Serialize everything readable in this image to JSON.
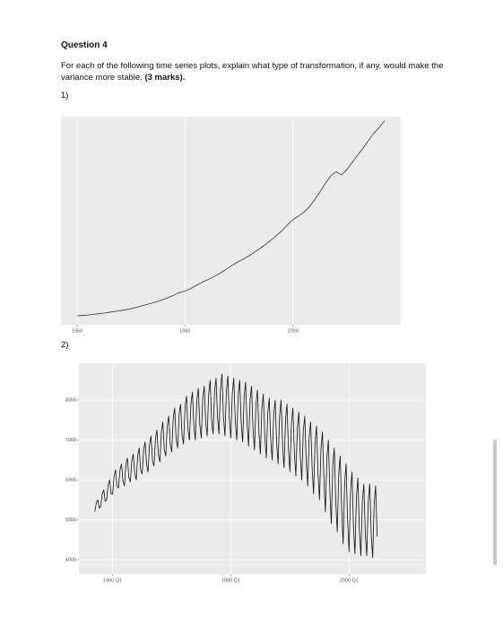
{
  "question": {
    "title": "Question 4",
    "text": "For each of the following time series plots, explain what type of transformation, if any, would make the variance more stable.",
    "marks": "(3 marks).",
    "label1": "1)",
    "label2": "2)"
  },
  "chart_data": [
    {
      "type": "line",
      "color": "#333333",
      "x": [
        1960,
        1961,
        1962,
        1963,
        1964,
        1965,
        1966,
        1967,
        1968,
        1969,
        1970,
        1971,
        1972,
        1973,
        1974,
        1975,
        1976,
        1977,
        1978,
        1979,
        1980,
        1981,
        1982,
        1983,
        1984,
        1985,
        1986,
        1987,
        1988,
        1989,
        1990,
        1991,
        1992,
        1993,
        1994,
        1995,
        1996,
        1997,
        1998,
        1999,
        2000,
        2001,
        2002,
        2003,
        2004,
        2005,
        2006,
        2007,
        2008,
        2009,
        2010,
        2011,
        2012,
        2013,
        2014,
        2015,
        2016,
        2017
      ],
      "values": [
        4.3,
        4.5,
        4.7,
        5.0,
        5.3,
        5.6,
        6.0,
        6.4,
        6.8,
        7.2,
        7.7,
        8.4,
        9.1,
        9.8,
        10.5,
        11.3,
        12.2,
        13.2,
        14.3,
        15.5,
        16.2,
        17.3,
        18.8,
        20.2,
        21.4,
        22.6,
        24.0,
        25.6,
        27.3,
        29.0,
        30.5,
        31.8,
        33.4,
        35.1,
        36.8,
        38.7,
        40.8,
        43.0,
        45.3,
        48.0,
        50.6,
        52.2,
        54.0,
        56.5,
        60.0,
        63.8,
        67.8,
        71.5,
        73.5,
        72.0,
        74.5,
        78.0,
        81.5,
        84.8,
        88.5,
        92.0,
        94.8,
        98.0
      ],
      "xlim": [
        1957,
        2020
      ],
      "ylim": [
        0,
        100
      ],
      "xticks": [
        1960,
        1980,
        2000
      ],
      "grid": true
    },
    {
      "type": "line",
      "color": "#111111",
      "x": [
        1957,
        1957.25,
        1957.5,
        1957.75,
        1958,
        1958.25,
        1958.5,
        1958.75,
        1959,
        1959.25,
        1959.5,
        1959.75,
        1960,
        1960.25,
        1960.5,
        1960.75,
        1961,
        1961.25,
        1961.5,
        1961.75,
        1962,
        1962.25,
        1962.5,
        1962.75,
        1963,
        1963.25,
        1963.5,
        1963.75,
        1964,
        1964.25,
        1964.5,
        1964.75,
        1965,
        1965.25,
        1965.5,
        1965.75,
        1966,
        1966.25,
        1966.5,
        1966.75,
        1967,
        1967.25,
        1967.5,
        1967.75,
        1968,
        1968.25,
        1968.5,
        1968.75,
        1969,
        1969.25,
        1969.5,
        1969.75,
        1970,
        1970.25,
        1970.5,
        1970.75,
        1971,
        1971.25,
        1971.5,
        1971.75,
        1972,
        1972.25,
        1972.5,
        1972.75,
        1973,
        1973.25,
        1973.5,
        1973.75,
        1974,
        1974.25,
        1974.5,
        1974.75,
        1975,
        1975.25,
        1975.5,
        1975.75,
        1976,
        1976.25,
        1976.5,
        1976.75,
        1977,
        1977.25,
        1977.5,
        1977.75,
        1978,
        1978.25,
        1978.5,
        1978.75,
        1979,
        1979.25,
        1979.5,
        1979.75,
        1980,
        1980.25,
        1980.5,
        1980.75,
        1981,
        1981.25,
        1981.5,
        1981.75,
        1982,
        1982.25,
        1982.5,
        1982.75,
        1983,
        1983.25,
        1983.5,
        1983.75,
        1984,
        1984.25,
        1984.5,
        1984.75,
        1985,
        1985.25,
        1985.5,
        1985.75,
        1986,
        1986.25,
        1986.5,
        1986.75,
        1987,
        1987.25,
        1987.5,
        1987.75,
        1988,
        1988.25,
        1988.5,
        1988.75,
        1989,
        1989.25,
        1989.5,
        1989.75,
        1990,
        1990.25,
        1990.5,
        1990.75,
        1991,
        1991.25,
        1991.5,
        1991.75,
        1992,
        1992.25,
        1992.5,
        1992.75,
        1993,
        1993.25,
        1993.5,
        1993.75,
        1994,
        1994.25,
        1994.5,
        1994.75,
        1995,
        1995.25,
        1995.5,
        1995.75,
        1996,
        1996.25,
        1996.5,
        1996.75,
        1997,
        1997.25,
        1997.5,
        1997.75,
        1998,
        1998.25,
        1998.5,
        1998.75,
        1999,
        1999.25,
        1999.5,
        1999.75,
        2000,
        2000.25,
        2000.5,
        2000.75,
        2001,
        2001.25,
        2001.5,
        2001.75,
        2002,
        2002.25,
        2002.5,
        2002.75,
        2003,
        2003.25,
        2003.5,
        2003.75,
        2004,
        2004.25,
        2004.5,
        2004.75
      ],
      "values": [
        5200,
        5430,
        5500,
        5290,
        5350,
        5650,
        5750,
        5470,
        5500,
        5880,
        6000,
        5650,
        5650,
        6100,
        6250,
        5830,
        5800,
        6250,
        6400,
        5980,
        5850,
        6380,
        6550,
        6060,
        5950,
        6480,
        6650,
        6160,
        6000,
        6600,
        6800,
        6240,
        6150,
        6750,
        6950,
        6390,
        6200,
        6880,
        7100,
        6470,
        6350,
        7030,
        7250,
        6620,
        6450,
        7200,
        7450,
        6750,
        6600,
        7350,
        7600,
        6900,
        6700,
        7530,
        7800,
        7030,
        6800,
        7630,
        7900,
        7130,
        6900,
        7800,
        8100,
        7260,
        7000,
        7900,
        8200,
        7360,
        7000,
        7980,
        8300,
        7390,
        7050,
        8030,
        8350,
        7440,
        7100,
        8150,
        8500,
        7520,
        7150,
        8200,
        8550,
        7570,
        7150,
        8280,
        8650,
        7600,
        7100,
        8230,
        8600,
        7550,
        7050,
        8180,
        8550,
        7500,
        7000,
        8130,
        8500,
        7450,
        6950,
        8080,
        8450,
        7400,
        6850,
        7980,
        8350,
        7300,
        6750,
        7880,
        8250,
        7200,
        6650,
        7780,
        8150,
        7100,
        6550,
        7680,
        8050,
        7000,
        6500,
        7630,
        8000,
        6950,
        6400,
        7600,
        8000,
        6880,
        6300,
        7500,
        7900,
        6780,
        6200,
        7400,
        7800,
        6680,
        6100,
        7300,
        7700,
        6580,
        6000,
        7200,
        7600,
        6480,
        5850,
        7050,
        7450,
        6330,
        5650,
        6930,
        7350,
        6160,
        5500,
        6780,
        7200,
        6010,
        5200,
        6550,
        7000,
        5740,
        4900,
        6330,
        6800,
        5470,
        4700,
        6130,
        6600,
        5270,
        4400,
        5900,
        6400,
        5000,
        4200,
        5700,
        6200,
        4800,
        4150,
        5580,
        6050,
        4720,
        4100,
        5450,
        5900,
        4640,
        4100,
        5450,
        5900,
        4640,
        4050,
        5400,
        5850,
        4590
      ],
      "xlim": [
        1954.3,
        2013
      ],
      "ylim": [
        3640,
        8920
      ],
      "xticks": [
        {
          "value": 1960,
          "label": "1960 Q1"
        },
        {
          "value": 1980,
          "label": "1980 Q1"
        },
        {
          "value": 2000,
          "label": "2000 Q1"
        }
      ],
      "yticks": [
        4000,
        5000,
        6000,
        7000,
        8000
      ],
      "grid": true
    }
  ]
}
